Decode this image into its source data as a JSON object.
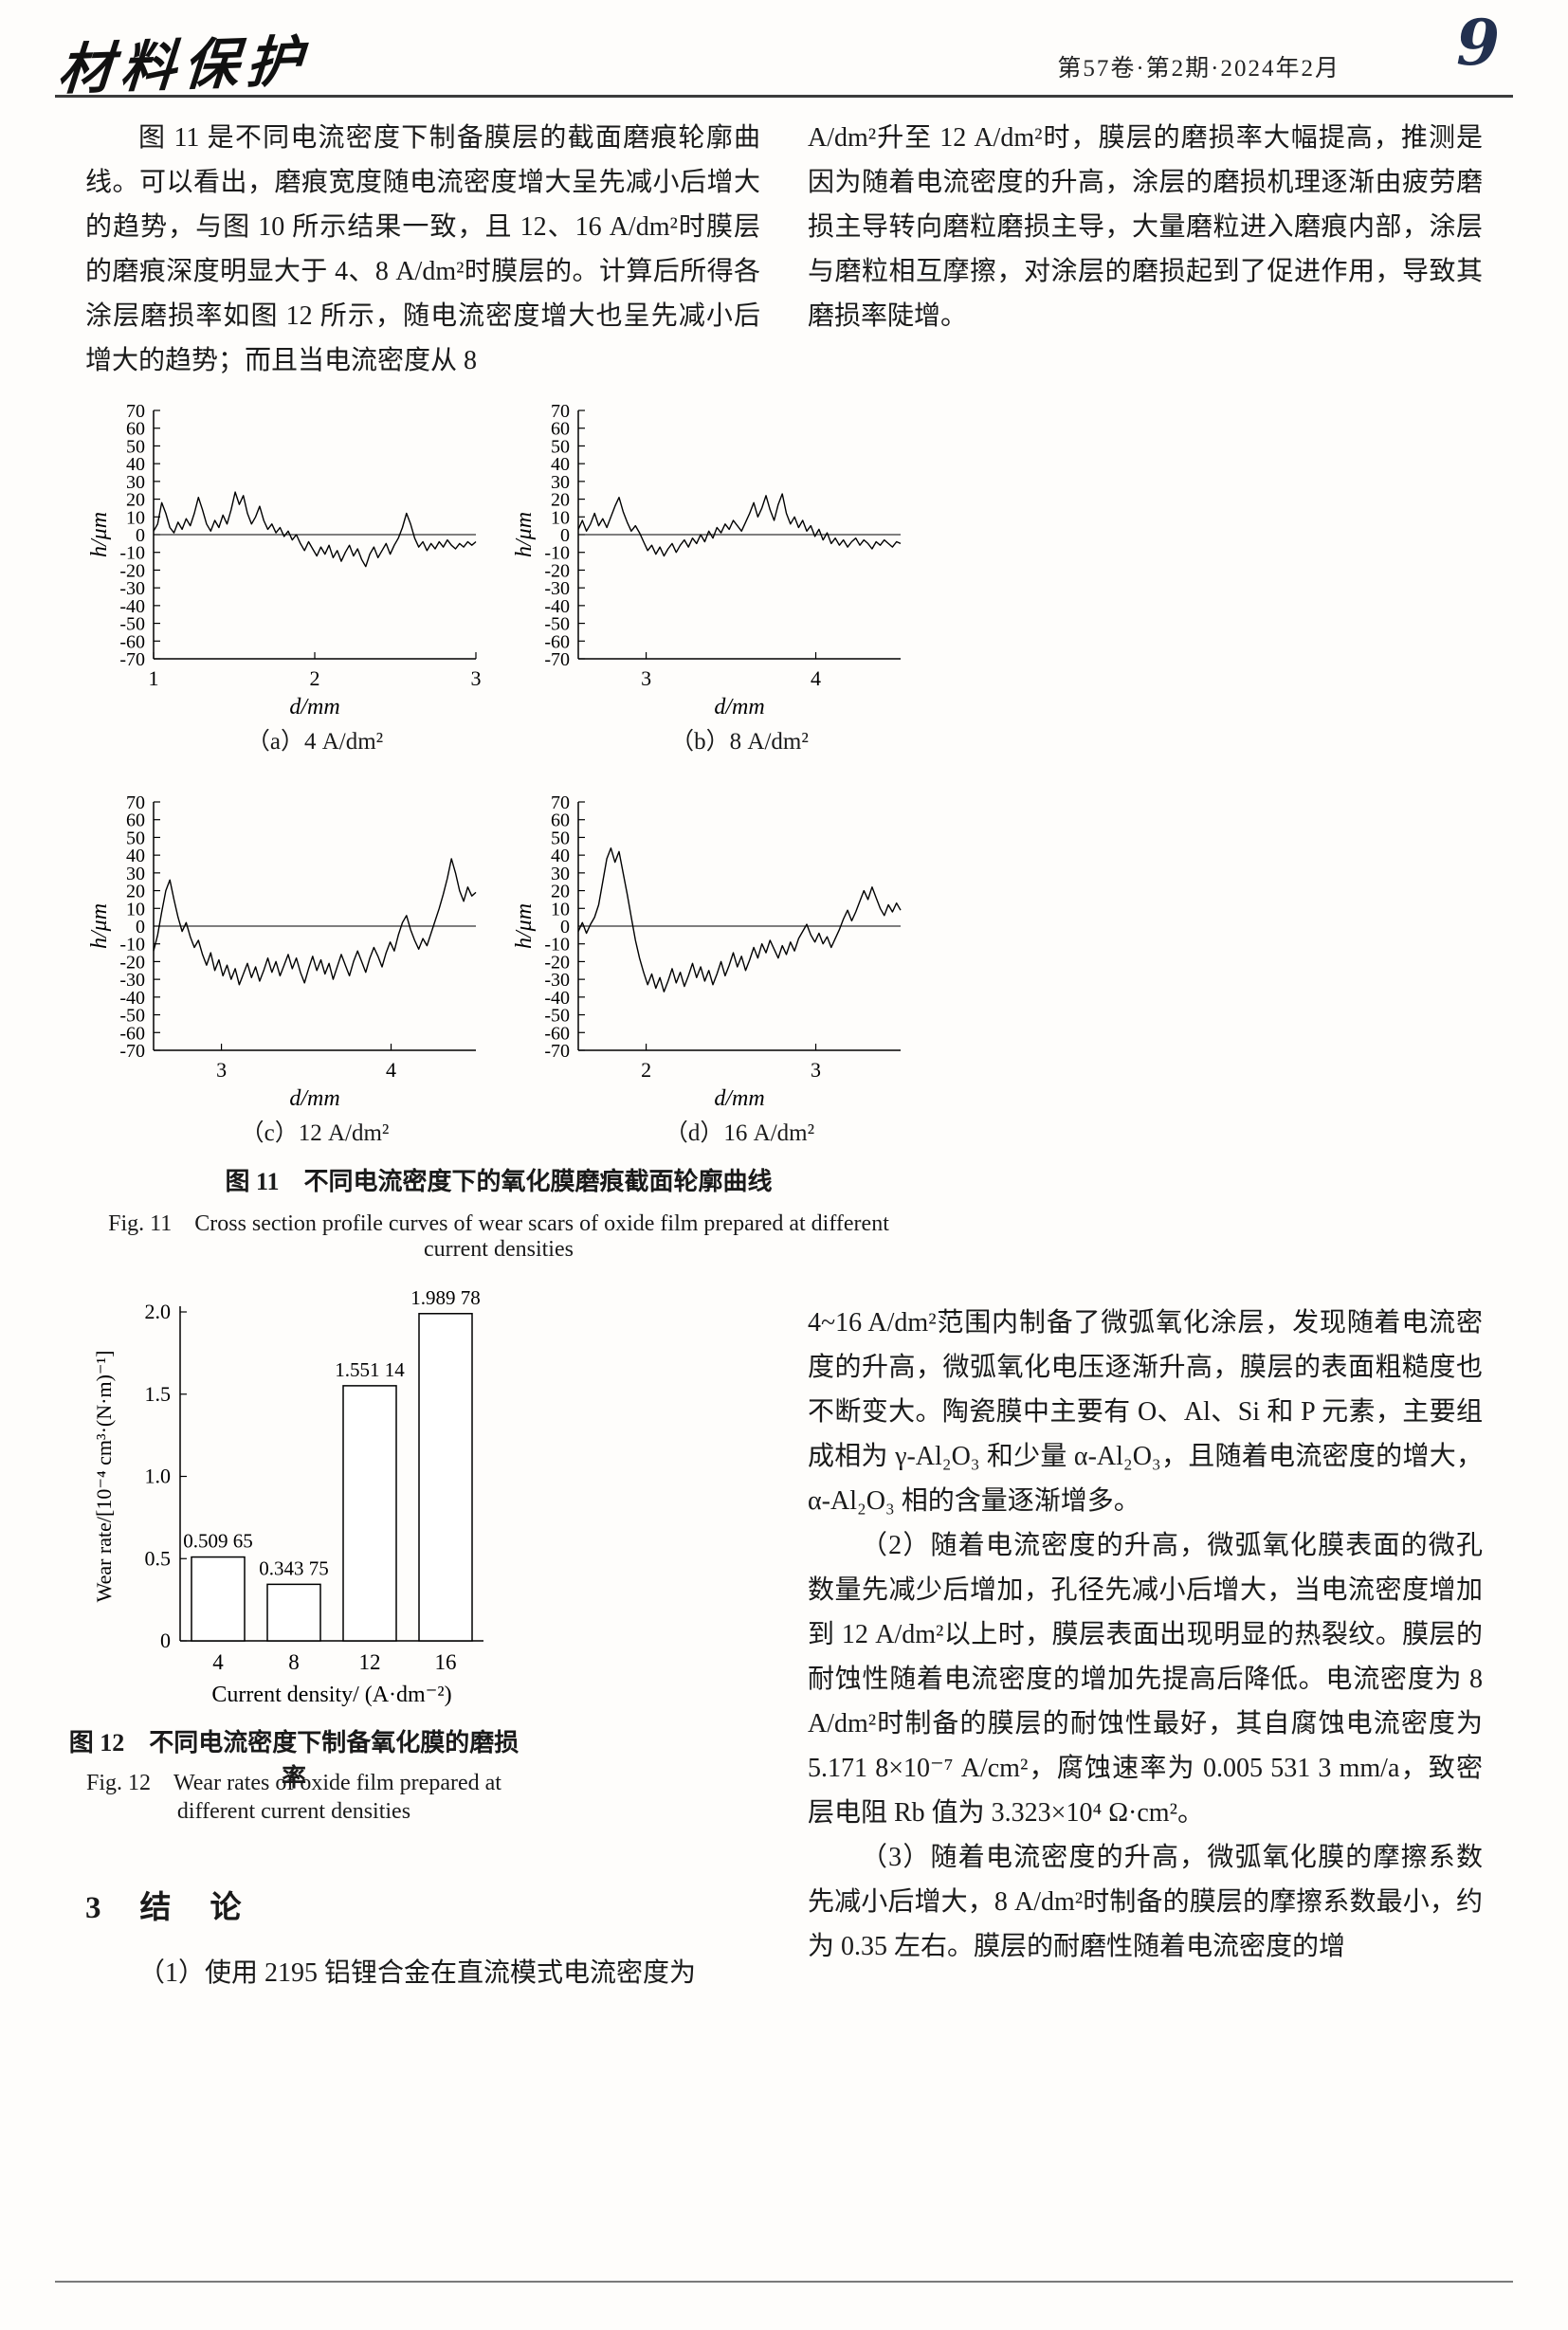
{
  "header": {
    "journal_logo": "材料保护",
    "issue_info": "第57卷·第2期·2024年2月",
    "page_number": "9"
  },
  "intro": {
    "left_paragraph": "图 11 是不同电流密度下制备膜层的截面磨痕轮廓曲线。可以看出，磨痕宽度随电流密度增大呈先减小后增大的趋势，与图 10 所示结果一致，且 12、16 A/dm²时膜层的磨痕深度明显大于 4、8 A/dm²时膜层的。计算后所得各涂层磨损率如图 12 所示，随电流密度增大也呈先减小后增大的趋势；而且当电流密度从 8",
    "right_paragraph": "A/dm²升至 12 A/dm²时，膜层的磨损率大幅提高，推测是因为随着电流密度的升高，涂层的磨损机理逐渐由疲劳磨损主导转向磨粒磨损主导，大量磨粒进入磨痕内部，涂层与磨粒相互摩擦，对涂层的磨损起到了促进作用，导致其磨损率陡增。"
  },
  "figure11": {
    "caption_cn": "图 11　不同电流密度下的氧化膜磨痕截面轮廓曲线",
    "caption_en": "Fig. 11　Cross section profile curves of wear scars of oxide film prepared at different current densities"
  },
  "figure12": {
    "caption_cn": "图 12　不同电流密度下制备氧化膜的磨损率",
    "caption_en_line1": "Fig. 12　Wear rates of oxide film prepared at",
    "caption_en_line2": "different current densities"
  },
  "conclusion": {
    "heading": "3　结　论",
    "p1_left": "（1）使用 2195 铝锂合金在直流模式电流密度为",
    "p1_right": "4~16 A/dm²范围内制备了微弧氧化涂层，发现随着电流密度的升高，微弧氧化电压逐渐升高，膜层的表面粗糙度也不断变大。陶瓷膜中主要有 O、Al、Si 和 P 元素，主要组成相为 γ-Al₂O₃ 和少量 α-Al₂O₃，且随着电流密度的增大，α-Al₂O₃ 相的含量逐渐增多。",
    "p2": "（2）随着电流密度的升高，微弧氧化膜表面的微孔数量先减少后增加，孔径先减小后增大，当电流密度增加到 12 A/dm²以上时，膜层表面出现明显的热裂纹。膜层的耐蚀性随着电流密度的增加先提高后降低。电流密度为 8 A/dm²时制备的膜层的耐蚀性最好，其自腐蚀电流密度为 5.171 8×10⁻⁷ A/cm²，腐蚀速率为 0.005 531 3 mm/a，致密层电阻 Rb 值为 3.323×10⁴ Ω·cm²。",
    "p3": "（3）随着电流密度的升高，微弧氧化膜的摩擦系数先减小后增大，8 A/dm²时制备的膜层的摩擦系数最小，约为 0.35 左右。膜层的耐磨性随着电流密度的增"
  },
  "chart_data": [
    {
      "type": "line",
      "name": "wear-scar-profile-4adm2",
      "subcaption": "（a）4 A/dm²",
      "xlabel": "d/mm",
      "ylabel": "h/μm",
      "xlim": [
        1.0,
        3.0
      ],
      "xticks": [
        1,
        2,
        3
      ],
      "ylim": [
        -70,
        70
      ],
      "yticks": [
        70,
        60,
        50,
        40,
        30,
        20,
        10,
        0,
        -10,
        -20,
        -30,
        -40,
        -50,
        -60,
        -70
      ],
      "y": [
        2,
        6,
        18,
        12,
        4,
        1,
        7,
        3,
        9,
        5,
        12,
        21,
        14,
        6,
        2,
        8,
        4,
        11,
        6,
        14,
        24,
        17,
        22,
        12,
        6,
        10,
        16,
        8,
        3,
        6,
        1,
        4,
        -1,
        2,
        -3,
        0,
        -5,
        -9,
        -4,
        -8,
        -12,
        -7,
        -11,
        -6,
        -13,
        -9,
        -15,
        -10,
        -6,
        -12,
        -8,
        -14,
        -18,
        -11,
        -7,
        -13,
        -9,
        -5,
        -11,
        -6,
        -2,
        4,
        12,
        6,
        -2,
        -7,
        -4,
        -9,
        -5,
        -8,
        -4,
        -7,
        -3,
        -6,
        -8,
        -5,
        -7,
        -4,
        -6,
        -4
      ]
    },
    {
      "type": "line",
      "name": "wear-scar-profile-8adm2",
      "subcaption": "（b）8 A/dm²",
      "xlabel": "d/mm",
      "ylabel": "h/μm",
      "xlim": [
        2.6,
        4.5
      ],
      "xticks": [
        3,
        4
      ],
      "ylim": [
        -70,
        70
      ],
      "yticks": [
        70,
        60,
        50,
        40,
        30,
        20,
        10,
        0,
        -10,
        -20,
        -30,
        -40,
        -50,
        -60,
        -70
      ],
      "y": [
        3,
        8,
        2,
        6,
        12,
        5,
        9,
        4,
        10,
        16,
        21,
        13,
        7,
        2,
        5,
        1,
        -4,
        -9,
        -6,
        -11,
        -7,
        -12,
        -8,
        -5,
        -10,
        -6,
        -3,
        -7,
        -2,
        -5,
        0,
        -4,
        2,
        -2,
        4,
        1,
        6,
        3,
        8,
        5,
        2,
        7,
        12,
        18,
        10,
        15,
        22,
        14,
        8,
        17,
        23,
        12,
        6,
        10,
        4,
        8,
        2,
        5,
        -1,
        3,
        -3,
        1,
        -5,
        -2,
        -6,
        -3,
        -7,
        -4,
        -2,
        -6,
        -3,
        -5,
        -8,
        -4,
        -6,
        -3,
        -5,
        -7,
        -4,
        -5
      ]
    },
    {
      "type": "line",
      "name": "wear-scar-profile-12adm2",
      "subcaption": "（c）12 A/dm²",
      "xlabel": "d/mm",
      "ylabel": "h/μm",
      "xlim": [
        2.6,
        4.5
      ],
      "xticks": [
        3,
        4
      ],
      "ylim": [
        -70,
        70
      ],
      "yticks": [
        70,
        60,
        50,
        40,
        30,
        20,
        10,
        0,
        -10,
        -20,
        -30,
        -40,
        -50,
        -60,
        -70
      ],
      "y": [
        -14,
        -5,
        8,
        20,
        26,
        15,
        5,
        -3,
        2,
        -6,
        -12,
        -8,
        -16,
        -22,
        -15,
        -25,
        -19,
        -28,
        -22,
        -30,
        -24,
        -33,
        -27,
        -21,
        -29,
        -23,
        -31,
        -25,
        -18,
        -26,
        -20,
        -28,
        -22,
        -16,
        -24,
        -18,
        -26,
        -32,
        -24,
        -17,
        -25,
        -19,
        -27,
        -21,
        -30,
        -23,
        -16,
        -22,
        -28,
        -20,
        -14,
        -20,
        -26,
        -18,
        -12,
        -17,
        -23,
        -15,
        -9,
        -14,
        -5,
        2,
        6,
        -2,
        -8,
        -13,
        -7,
        -11,
        -4,
        3,
        10,
        18,
        27,
        38,
        30,
        20,
        14,
        22,
        17,
        19
      ]
    },
    {
      "type": "line",
      "name": "wear-scar-profile-16adm2",
      "subcaption": "（d）16 A/dm²",
      "xlabel": "d/mm",
      "ylabel": "h/μm",
      "xlim": [
        1.6,
        3.5
      ],
      "xticks": [
        2,
        3
      ],
      "ylim": [
        -70,
        70
      ],
      "yticks": [
        70,
        60,
        50,
        40,
        30,
        20,
        10,
        0,
        -10,
        -20,
        -30,
        -40,
        -50,
        -60,
        -70
      ],
      "y": [
        -3,
        2,
        -4,
        1,
        5,
        12,
        25,
        38,
        44,
        36,
        42,
        30,
        18,
        5,
        -8,
        -18,
        -26,
        -33,
        -27,
        -35,
        -29,
        -37,
        -31,
        -24,
        -32,
        -26,
        -34,
        -28,
        -21,
        -29,
        -23,
        -31,
        -25,
        -33,
        -27,
        -20,
        -28,
        -22,
        -15,
        -23,
        -17,
        -25,
        -19,
        -12,
        -18,
        -10,
        -15,
        -8,
        -13,
        -18,
        -11,
        -16,
        -9,
        -14,
        -7,
        -3,
        1,
        -5,
        -9,
        -4,
        -10,
        -6,
        -12,
        -7,
        -2,
        4,
        9,
        3,
        8,
        14,
        20,
        15,
        22,
        16,
        10,
        6,
        12,
        8,
        13,
        9
      ]
    },
    {
      "type": "bar",
      "name": "wear-rate-bar-chart",
      "categories": [
        "4",
        "8",
        "12",
        "16"
      ],
      "values": [
        0.50965,
        0.34375,
        1.55114,
        1.98978
      ],
      "value_labels": [
        "0.509 65",
        "0.343 75",
        "1.551 14",
        "1.989 78"
      ],
      "xlabel": "Current density/ (A·dm⁻²)",
      "ylabel": "Wear rate/[10⁻⁴ cm³·(N·m)⁻¹]",
      "ylim": [
        0,
        2.0
      ],
      "yticks": [
        "0",
        "0.5",
        "1.0",
        "1.5",
        "2.0"
      ]
    }
  ]
}
